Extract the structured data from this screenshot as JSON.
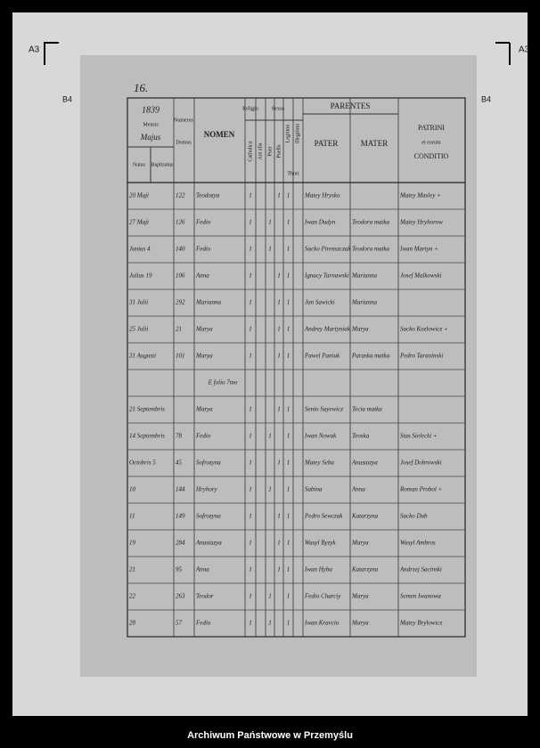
{
  "page_number": "16.",
  "corner_labels": {
    "top_left": "A3",
    "top_right": "A3",
    "mid_left": "B4",
    "mid_right": "B4"
  },
  "header": {
    "year": "1839",
    "mensis": "Mensis",
    "month": "Majus",
    "natus": "Natus",
    "baptisatus": "Baptisatus",
    "numerus": "Numerus",
    "domus": "Domus",
    "nomen": "NOMEN",
    "religio": "Religio",
    "sexus": "Sexus",
    "parentes": "PARENTES",
    "pater": "PATER",
    "mater": "MATER",
    "patrini": "PATRINI",
    "patrini_sub": "et eorum",
    "conditio": "CONDITIO",
    "catholica": "Catholica",
    "aut_alia": "Aut alia",
    "puer": "Puer",
    "puella": "Puella",
    "legitimi": "Legitimi",
    "illegitimi": "Illegitimi",
    "thori": "Thori"
  },
  "rows": [
    {
      "date": "20 Maji",
      "domus": "122",
      "nomen": "Teodozya",
      "catholica": "1",
      "puella": "1",
      "legitimi": "1",
      "pater": "Matey Hrysko",
      "patrini": "Matey Masley +"
    },
    {
      "date": "27 Maji",
      "domus": "126",
      "nomen": "Fedio",
      "catholica": "1",
      "puer": "1",
      "legitimi": "1",
      "pater": "Iwan Dudyn",
      "mater": "Teodora matka",
      "patrini": "Matey Hryhorow"
    },
    {
      "date": "Junius 4",
      "domus": "140",
      "nomen": "Fedio",
      "catholica": "1",
      "puer": "1",
      "legitimi": "1",
      "pater": "Sacko Pirenszczak",
      "mater": "Teodora matka",
      "patrini": "Iwan Martyn +"
    },
    {
      "date": "Julius 19",
      "domus": "106",
      "nomen": "Anna",
      "catholica": "1",
      "puella": "1",
      "legitimi": "1",
      "pater": "Ignacy Tarnawski",
      "mater": "Marianna",
      "patrini": "Josef Malkowski"
    },
    {
      "date": "31 Julii",
      "domus": "292",
      "nomen": "Marianna",
      "catholica": "1",
      "puella": "1",
      "legitimi": "1",
      "pater": "Jan Sawicki",
      "mater": "Marianna"
    },
    {
      "date": "25 Julii",
      "domus": "21",
      "nomen": "Marya",
      "catholica": "1",
      "puella": "1",
      "legitimi": "1",
      "pater": "Andrey Martyniak",
      "mater": "Marya",
      "patrini": "Sacko Kozlowicz +"
    },
    {
      "date": "31 Augusti",
      "domus": "101",
      "nomen": "Marya",
      "catholica": "1",
      "puella": "1",
      "legitimi": "1",
      "pater": "Pawel Paniuk",
      "mater": "Paraska matka",
      "patrini": "Pedro Taraninski"
    },
    {
      "note": "E folio 7mo"
    },
    {
      "date": "21 Septembris",
      "nomen": "Marya",
      "catholica": "1",
      "puella": "1",
      "legitimi": "1",
      "pater": "Senio Sayewicz",
      "mater": "Tecia matka"
    },
    {
      "date": "14 Septembris",
      "domus": "78",
      "nomen": "Fedio",
      "catholica": "1",
      "puer": "1",
      "legitimi": "1",
      "pater": "Iwan Nowak",
      "mater": "Teoska",
      "patrini": "Stas Sielecki +"
    },
    {
      "date": "Octobris 5",
      "domus": "45",
      "nomen": "Sofrozyna",
      "catholica": "1",
      "puella": "1",
      "legitimi": "1",
      "pater": "Matey Seba",
      "mater": "Anastazya",
      "patrini": "Josef Dobrowski"
    },
    {
      "date": "10",
      "domus": "144",
      "nomen": "Hryhory",
      "catholica": "1",
      "puer": "1",
      "legitimi": "1",
      "pater": "Sabina",
      "mater": "Anna",
      "patrini": "Roman Probol +"
    },
    {
      "date": "11",
      "domus": "149",
      "nomen": "Sofrozyna",
      "catholica": "1",
      "puella": "1",
      "legitimi": "1",
      "pater": "Pedro Sewczak",
      "mater": "Katarzyna",
      "patrini": "Sacko Dub"
    },
    {
      "date": "19",
      "domus": "284",
      "nomen": "Anastazya",
      "catholica": "1",
      "puella": "1",
      "legitimi": "1",
      "pater": "Wasyl Byzyk",
      "mater": "Marya",
      "patrini": "Wasyl Ambros"
    },
    {
      "date": "21",
      "domus": "95",
      "nomen": "Anna",
      "catholica": "1",
      "puella": "1",
      "legitimi": "1",
      "pater": "Iwan Hyba",
      "mater": "Katarzyna",
      "patrini": "Andrzej Sacinski"
    },
    {
      "date": "22",
      "domus": "263",
      "nomen": "Teodor",
      "catholica": "1",
      "puer": "1",
      "legitimi": "1",
      "pater": "Fedio Charciy",
      "mater": "Marya",
      "patrini": "Semen Iwanowa"
    },
    {
      "date": "28",
      "domus": "57",
      "nomen": "Fedio",
      "catholica": "1",
      "puer": "1",
      "legitimi": "1",
      "pater": "Iwan Kravcio",
      "mater": "Marya",
      "patrini": "Matey Brylowicz"
    }
  ],
  "footer": "Archiwum Państwowe w Przemyślu"
}
